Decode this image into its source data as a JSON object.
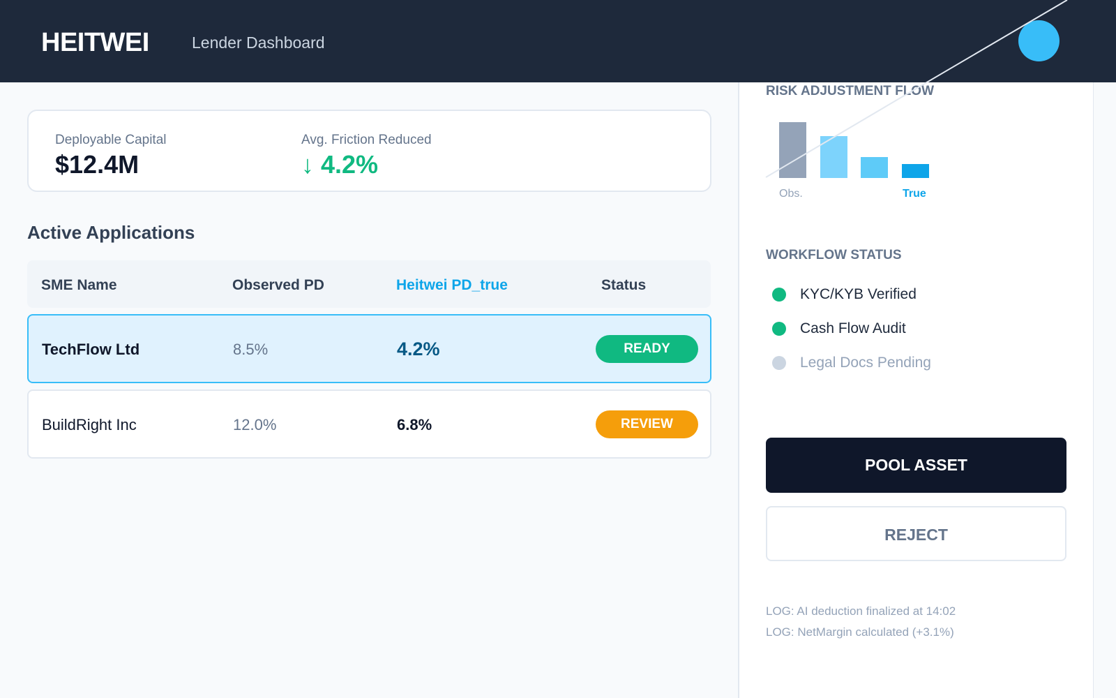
{
  "header": {
    "logo": "HEITWEI",
    "subtitle": "Lender Dashboard",
    "avatar_color": "#38bdf8"
  },
  "kpis": [
    {
      "label": "Deployable Capital",
      "value": "$12.4M"
    },
    {
      "label": "Avg. Friction Reduced",
      "icon": "arrow-down-icon",
      "arrow": "↓",
      "value": "4.2%",
      "color": "#10b981"
    }
  ],
  "applications": {
    "title": "Active Applications",
    "columns": [
      "SME Name",
      "Observed PD",
      "Heitwei PD_true",
      "Status"
    ],
    "rows": [
      {
        "name": "TechFlow Ltd",
        "observed": "8.5%",
        "true": "4.2%",
        "status": "READY",
        "status_color": "#10b981",
        "selected": true
      },
      {
        "name": "BuildRight Inc",
        "observed": "12.0%",
        "true": "6.8%",
        "status": "REVIEW",
        "status_color": "#f59e0b",
        "selected": false
      }
    ]
  },
  "risk": {
    "title": "RISK ADJUSTMENT FLOW",
    "chart_data": {
      "type": "bar",
      "values_relative": [
        100,
        75,
        37.5,
        25
      ],
      "colors": [
        "#94a3b8",
        "#7dd3fc",
        "#5ecbf8",
        "#0ea5e9"
      ],
      "labels": [
        "Obs.",
        "",
        "",
        "True"
      ]
    }
  },
  "workflow": {
    "title": "WORKFLOW STATUS",
    "items": [
      {
        "label": "KYC/KYB Verified",
        "state": "done"
      },
      {
        "label": "Cash Flow Audit",
        "state": "done"
      },
      {
        "label": "Legal Docs Pending",
        "state": "pending"
      }
    ]
  },
  "actions": {
    "pool": "POOL ASSET",
    "reject": "REJECT"
  },
  "logs": [
    "LOG: AI deduction finalized at 14:02",
    "LOG: NetMargin calculated (+3.1%)"
  ]
}
